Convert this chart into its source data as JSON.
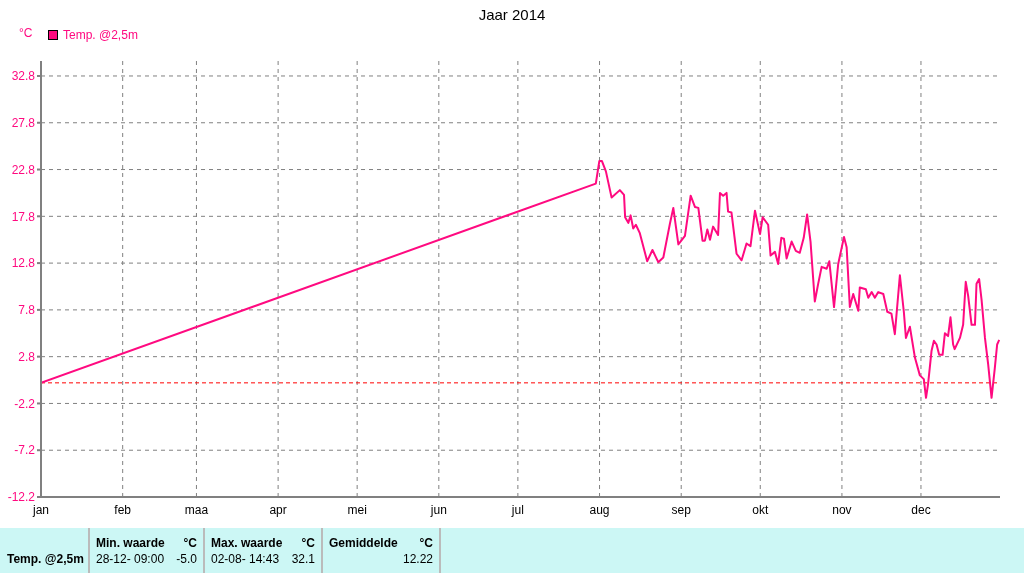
{
  "chart_data": {
    "type": "line",
    "title": "Jaar 2014",
    "ylabel": "°C",
    "x": [
      "2014-01-01T00:00",
      "2014-07-30T14:00",
      "2014-07-31T22:00",
      "2014-08-01T22:00",
      "2014-08-03T10:00",
      "2014-08-05T14:00",
      "2014-08-08T17:00",
      "2014-08-10T07:00",
      "2014-08-10T17:00",
      "2014-08-11T22:00",
      "2014-08-12T19:00",
      "2014-08-13T19:00",
      "2014-08-14T19:00",
      "2014-08-16T07:00",
      "2014-08-19T02:00",
      "2014-08-21T02:00",
      "2014-08-23T07:00",
      "2014-08-25T05:00",
      "2014-08-27T17:00",
      "2014-08-29T00:00",
      "2014-08-30T22:00",
      "2014-09-02T10:00",
      "2014-09-04T14:00",
      "2014-09-06T05:00",
      "2014-09-07T12:00",
      "2014-09-09T02:00",
      "2014-09-10T00:00",
      "2014-09-10T22:00",
      "2014-09-11T22:00",
      "2014-09-13T02:00",
      "2014-09-15T00:00",
      "2014-09-15T17:00",
      "2014-09-16T22:00",
      "2014-09-18T05:00",
      "2014-09-18T19:00",
      "2014-09-20T02:00",
      "2014-09-22T00:00",
      "2014-09-23T22:00",
      "2014-09-25T19:00",
      "2014-09-27T07:00",
      "2014-09-29T00:00",
      "2014-09-30T22:00",
      "2014-10-01T22:00",
      "2014-10-04T00:00",
      "2014-10-04T22:00",
      "2014-10-06T14:00",
      "2014-10-07T19:00",
      "2014-10-09T00:00",
      "2014-10-10T00:00",
      "2014-10-11T00:00",
      "2014-10-12T22:00",
      "2014-10-14T12:00",
      "2014-10-16T00:00",
      "2014-10-17T12:00",
      "2014-10-18T19:00",
      "2014-10-20T02:00",
      "2014-10-21T17:00",
      "2014-10-23T00:00",
      "2014-10-24T07:00",
      "2014-10-26T05:00",
      "2014-10-27T05:00",
      "2014-10-29T00:00",
      "2014-10-30T14:00",
      "2014-11-01T19:00",
      "2014-11-02T19:00",
      "2014-11-04T00:00",
      "2014-11-05T07:00",
      "2014-11-07T05:00",
      "2014-11-07T19:00",
      "2014-11-10T02:00",
      "2014-11-11T00:00",
      "2014-11-12T07:00",
      "2014-11-13T12:00",
      "2014-11-14T19:00",
      "2014-11-16T17:00",
      "2014-11-18T05:00",
      "2014-11-19T19:00",
      "2014-11-21T02:00",
      "2014-11-23T00:00",
      "2014-11-24T12:00",
      "2014-11-25T07:00",
      "2014-11-26T19:00",
      "2014-11-28T17:00",
      "2014-11-30T14:00",
      "2014-12-02T02:00",
      "2014-12-02T22:00",
      "2014-12-03T17:00",
      "2014-12-05T00:00",
      "2014-12-05T22:00",
      "2014-12-06T22:00",
      "2014-12-07T22:00",
      "2014-12-09T05:00",
      "2014-12-10T02:00",
      "2014-12-11T07:00",
      "2014-12-12T05:00",
      "2014-12-13T05:00",
      "2014-12-13T19:00",
      "2014-12-15T19:00",
      "2014-12-17T00:00",
      "2014-12-18T00:00",
      "2014-12-18T22:00",
      "2014-12-20T05:00",
      "2014-12-21T12:00",
      "2014-12-22T02:00",
      "2014-12-23T02:00",
      "2014-12-24T00:00",
      "2014-12-25T07:00",
      "2014-12-26T12:00",
      "2014-12-27T19:00",
      "2014-12-29T00:00",
      "2014-12-29T22:00",
      "2014-12-30T17:00"
    ],
    "series": [
      {
        "name": "Temp. @2,5m",
        "color": "#ff0a80",
        "values": [
          0,
          21.3,
          23.7,
          23.7,
          22.6,
          19.8,
          20.6,
          20.1,
          17.7,
          17.1,
          17.9,
          16.5,
          16.9,
          16.0,
          13.0,
          14.2,
          12.9,
          13.4,
          17.0,
          18.7,
          14.8,
          15.7,
          20.0,
          18.8,
          18.7,
          15.2,
          15.2,
          16.4,
          15.3,
          16.7,
          15.8,
          20.3,
          20.0,
          20.3,
          18.3,
          18.2,
          13.8,
          13.1,
          14.9,
          14.6,
          18.4,
          15.9,
          17.7,
          16.9,
          13.6,
          14.0,
          12.7,
          15.5,
          15.4,
          13.3,
          15.1,
          14.1,
          13.9,
          15.5,
          18.0,
          15.1,
          8.7,
          10.6,
          12.4,
          12.2,
          13.0,
          8.1,
          12.7,
          15.6,
          14.5,
          8.1,
          9.5,
          7.7,
          10.2,
          10.0,
          9.1,
          9.7,
          9.1,
          9.7,
          9.5,
          7.6,
          7.4,
          5.2,
          11.5,
          7.6,
          4.8,
          6.0,
          2.7,
          0.8,
          0.4,
          -1.6,
          -0.1,
          3.4,
          4.5,
          4.1,
          3.0,
          3.0,
          5.3,
          5.0,
          7.0,
          4.1,
          3.6,
          4.8,
          6.2,
          10.8,
          9.3,
          6.2,
          6.2,
          10.6,
          11.1,
          8.9,
          4.8,
          2.0,
          -1.6,
          1.5,
          4.1,
          4.6
        ]
      }
    ],
    "xlim": [
      "2014-01-01",
      "2014-12-31"
    ],
    "xticks": [
      {
        "value": "2014-01-01",
        "label": "jan"
      },
      {
        "value": "2014-02-01",
        "label": "feb"
      },
      {
        "value": "2014-03-01",
        "label": "maa"
      },
      {
        "value": "2014-04-01",
        "label": "apr"
      },
      {
        "value": "2014-05-01",
        "label": "mei"
      },
      {
        "value": "2014-06-01",
        "label": "jun"
      },
      {
        "value": "2014-07-01",
        "label": "jul"
      },
      {
        "value": "2014-08-01",
        "label": "aug"
      },
      {
        "value": "2014-09-01",
        "label": "sep"
      },
      {
        "value": "2014-10-01",
        "label": "okt"
      },
      {
        "value": "2014-11-01",
        "label": "nov"
      },
      {
        "value": "2014-12-01",
        "label": "dec"
      }
    ],
    "ylim": [
      -12.2,
      34.4
    ],
    "yticks": [
      -12.2,
      -7.2,
      -2.2,
      2.8,
      7.8,
      12.8,
      17.8,
      22.8,
      27.8,
      32.8
    ],
    "grid": true,
    "legend": "top left",
    "marker": "none",
    "line_style": "solid",
    "ref_lines": [
      {
        "axis": "y",
        "value": 0,
        "color": "#ff0000",
        "line_style": "dashed"
      }
    ],
    "annotations": [
      "Temp. @2,5m",
      "Min. waarde",
      "°C",
      "28-12-  09:00",
      "-5.0",
      "Max. waarde",
      "°C",
      "02-08-  14:43",
      "32.1",
      "Gemiddelde",
      "°C",
      "12.22"
    ]
  }
}
